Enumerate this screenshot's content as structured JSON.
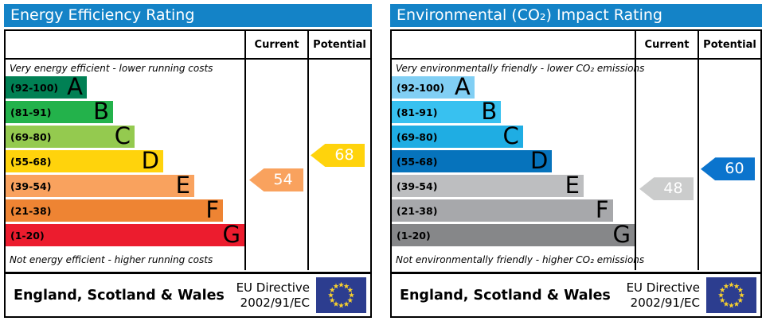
{
  "colors": {
    "title_bar": "#1483c7",
    "flag_bg": "#2c3d8f",
    "flag_star": "#f8d12e"
  },
  "panels": [
    {
      "title": "Energy Efficiency Rating",
      "header": {
        "current": "Current",
        "potential": "Potential"
      },
      "top_label": "Very energy efficient - lower running costs",
      "bottom_label": "Not energy efficient - higher running costs",
      "bands": [
        {
          "range": "(92-100)",
          "letter": "A",
          "min": 92,
          "max": 100,
          "color": "#008054",
          "width": "34%"
        },
        {
          "range": "(81-91)",
          "letter": "B",
          "min": 81,
          "max": 91,
          "color": "#23b24b",
          "width": "45%"
        },
        {
          "range": "(69-80)",
          "letter": "C",
          "min": 69,
          "max": 80,
          "color": "#94ca4f",
          "width": "54%"
        },
        {
          "range": "(55-68)",
          "letter": "D",
          "min": 55,
          "max": 68,
          "color": "#ffd30c",
          "width": "66%"
        },
        {
          "range": "(39-54)",
          "letter": "E",
          "min": 39,
          "max": 54,
          "color": "#f9a25e",
          "width": "79%"
        },
        {
          "range": "(21-38)",
          "letter": "F",
          "min": 21,
          "max": 38,
          "color": "#ee8433",
          "width": "91%"
        },
        {
          "range": "(1-20)",
          "letter": "G",
          "min": 1,
          "max": 20,
          "color": "#ec1c2e",
          "width": "100%"
        }
      ],
      "current": {
        "value": 54,
        "color": "#f9a25e"
      },
      "potential": {
        "value": 68,
        "color": "#ffd30c"
      },
      "footer": {
        "region": "England, Scotland & Wales",
        "directive_line1": "EU Directive",
        "directive_line2": "2002/91/EC"
      }
    },
    {
      "title": "Environmental (CO₂) Impact Rating",
      "header": {
        "current": "Current",
        "potential": "Potential"
      },
      "top_label": "Very environmentally friendly - lower CO₂ emissions",
      "bottom_label": "Not environmentally friendly - higher CO₂ emissions",
      "bands": [
        {
          "range": "(92-100)",
          "letter": "A",
          "min": 92,
          "max": 100,
          "color": "#81cff4",
          "width": "34%"
        },
        {
          "range": "(81-91)",
          "letter": "B",
          "min": 81,
          "max": 91,
          "color": "#38c1f0",
          "width": "45%"
        },
        {
          "range": "(69-80)",
          "letter": "C",
          "min": 69,
          "max": 80,
          "color": "#1fade3",
          "width": "54%"
        },
        {
          "range": "(55-68)",
          "letter": "D",
          "min": 55,
          "max": 68,
          "color": "#0673bc",
          "width": "66%"
        },
        {
          "range": "(39-54)",
          "letter": "E",
          "min": 39,
          "max": 54,
          "color": "#bdbec0",
          "width": "79%"
        },
        {
          "range": "(21-38)",
          "letter": "F",
          "min": 21,
          "max": 38,
          "color": "#a7a8ab",
          "width": "91%"
        },
        {
          "range": "(1-20)",
          "letter": "G",
          "min": 1,
          "max": 20,
          "color": "#868789",
          "width": "100%"
        }
      ],
      "current": {
        "value": 48,
        "color": "#cbcccc"
      },
      "potential": {
        "value": 60,
        "color": "#0b74cd"
      },
      "footer": {
        "region": "England, Scotland & Wales",
        "directive_line1": "EU Directive",
        "directive_line2": "2002/91/EC"
      }
    }
  ],
  "chart_data": [
    {
      "type": "bar",
      "title": "Energy Efficiency Rating",
      "categories": [
        "A (92-100)",
        "B (81-91)",
        "C (69-80)",
        "D (55-68)",
        "E (39-54)",
        "F (21-38)",
        "G (1-20)"
      ],
      "band_lengths_pct": [
        34,
        45,
        54,
        66,
        79,
        91,
        100
      ],
      "current_value": 54,
      "current_band": "E",
      "potential_value": 68,
      "potential_band": "D",
      "top_annotation": "Very energy efficient - lower running costs",
      "bottom_annotation": "Not energy efficient - higher running costs"
    },
    {
      "type": "bar",
      "title": "Environmental (CO₂) Impact Rating",
      "categories": [
        "A (92-100)",
        "B (81-91)",
        "C (69-80)",
        "D (55-68)",
        "E (39-54)",
        "F (21-38)",
        "G (1-20)"
      ],
      "band_lengths_pct": [
        34,
        45,
        54,
        66,
        79,
        91,
        100
      ],
      "current_value": 48,
      "current_band": "E",
      "potential_value": 60,
      "potential_band": "D",
      "top_annotation": "Very environmentally friendly - lower CO₂ emissions",
      "bottom_annotation": "Not environmentally friendly - higher CO₂ emissions"
    }
  ]
}
